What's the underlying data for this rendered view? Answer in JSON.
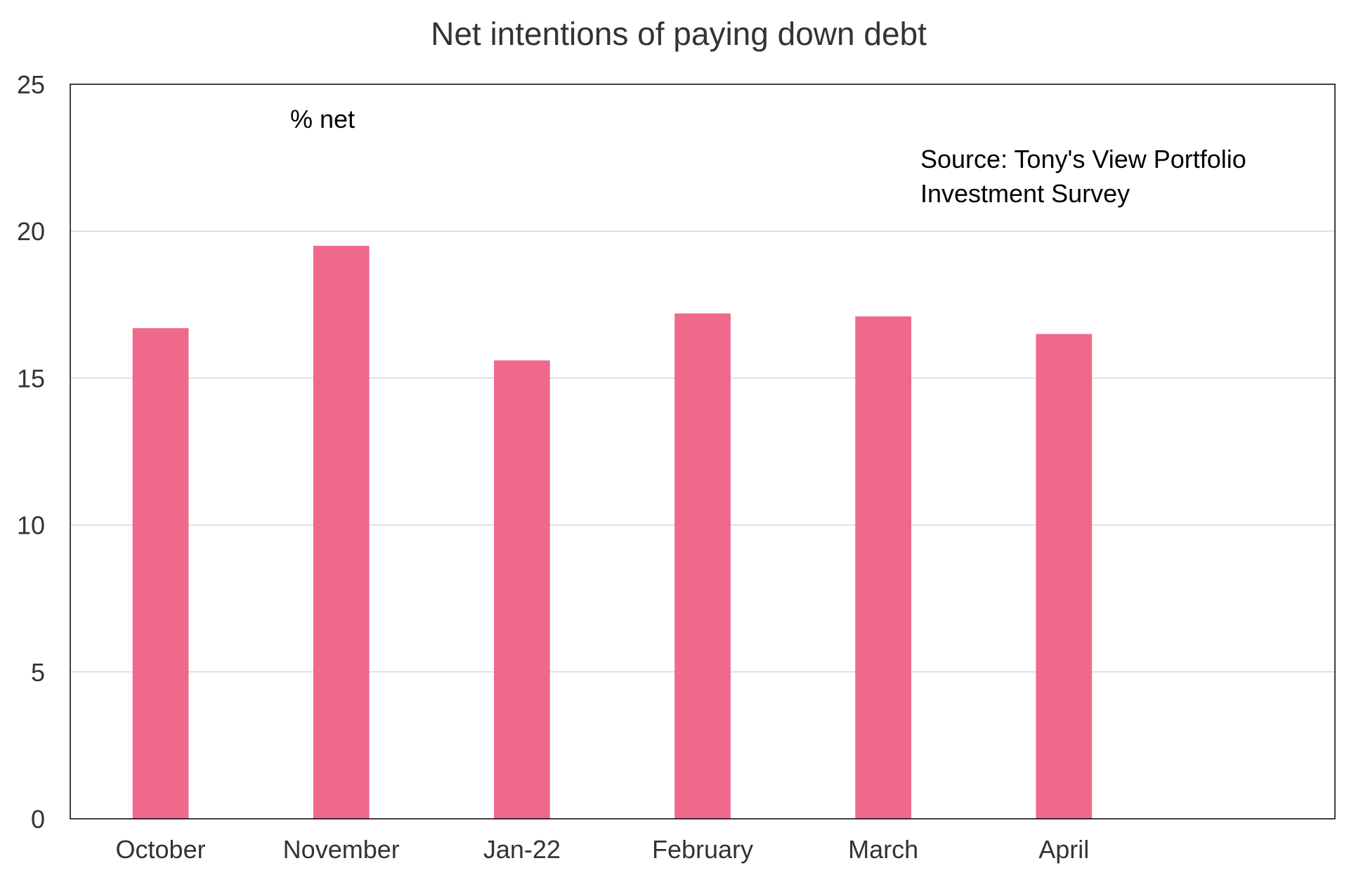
{
  "chart_data": {
    "type": "bar",
    "title": "Net intentions of paying down debt",
    "unit_label": "% net",
    "source_note": [
      "Source: Tony's View Portfolio",
      "Investment Survey"
    ],
    "categories": [
      "October",
      "November",
      "Jan-22",
      "February",
      "March",
      "April",
      ""
    ],
    "series": [
      {
        "values": [
          16.7,
          19.5,
          15.6,
          17.2,
          17.1,
          16.5,
          null
        ]
      }
    ],
    "ylim": [
      0,
      25
    ],
    "yticks": [
      0,
      5,
      10,
      15,
      20,
      25
    ],
    "grid": true,
    "colors": {
      "bar": "#f0688c",
      "grid": "#d9d9d9",
      "axis": "#000000",
      "text": "#333333"
    }
  }
}
